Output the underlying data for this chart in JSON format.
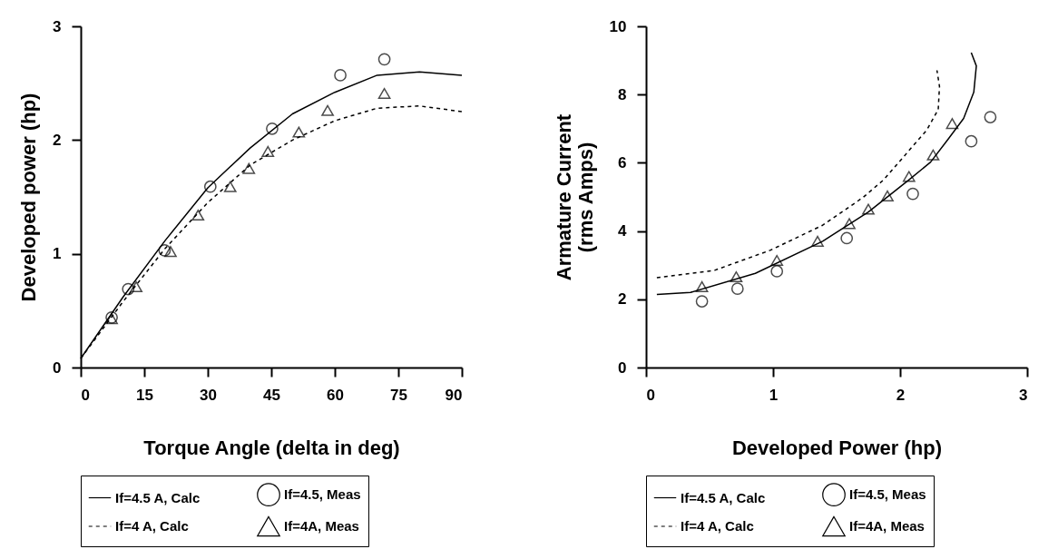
{
  "chart_data": [
    {
      "type": "line",
      "xlabel": "Torque Angle (delta in deg)",
      "ylabel": "Developed power (hp)",
      "xlim": [
        0,
        90
      ],
      "xticks": [
        0,
        15,
        30,
        45,
        60,
        75,
        90
      ],
      "ylim": [
        0,
        3
      ],
      "yticks": [
        0,
        1,
        2,
        3
      ],
      "grid": false,
      "legend": "bottom",
      "series": [
        {
          "name": "If=4.5 A, Calc",
          "type": "line",
          "line_style": "solid",
          "color": "#000000",
          "x": [
            0,
            10,
            20,
            30,
            40,
            50,
            60,
            70,
            80,
            90
          ],
          "values": [
            0.08,
            0.62,
            1.12,
            1.58,
            1.93,
            2.23,
            2.42,
            2.57,
            2.6,
            2.57
          ]
        },
        {
          "name": "If=4.5, Meas",
          "type": "scatter",
          "marker": "circle",
          "color": "#000000",
          "x": [
            7.3,
            11.2,
            19.8,
            30.6,
            45.2,
            61.3,
            71.7
          ],
          "values": [
            0.44,
            0.69,
            1.03,
            1.59,
            2.1,
            2.57,
            2.71
          ]
        },
        {
          "name": "If=4 A, Calc",
          "type": "line",
          "line_style": "dashed",
          "color": "#000000",
          "x": [
            0,
            10,
            20,
            30,
            40,
            50,
            60,
            70,
            80,
            90
          ],
          "values": [
            0.08,
            0.58,
            1.05,
            1.45,
            1.78,
            2.0,
            2.17,
            2.28,
            2.3,
            2.25
          ]
        },
        {
          "name": "If=4A, Meas",
          "type": "scatter",
          "marker": "triangle",
          "color": "#000000",
          "x": [
            7.3,
            13.1,
            21.2,
            27.7,
            35.3,
            39.7,
            44.2,
            51.5,
            58.3,
            71.7
          ],
          "values": [
            0.43,
            0.71,
            1.02,
            1.34,
            1.59,
            1.75,
            1.9,
            2.07,
            2.26,
            2.41
          ]
        }
      ]
    },
    {
      "type": "line",
      "xlabel": "Developed Power (hp)",
      "ylabel": "Armature Current\n(rms Amps)",
      "xlim": [
        0,
        3
      ],
      "xticks": [
        0,
        1,
        2,
        3
      ],
      "ylim": [
        0,
        10
      ],
      "yticks": [
        0,
        2,
        4,
        6,
        8,
        10
      ],
      "grid": false,
      "legend": "bottom",
      "series": [
        {
          "name": "If=4.5 A, Calc",
          "type": "line",
          "line_style": "solid",
          "color": "#000000",
          "x": [
            0.085,
            0.35,
            0.86,
            1.39,
            1.75,
            2.07,
            2.24,
            2.38,
            2.5,
            2.58,
            2.6,
            2.56
          ],
          "values": [
            2.14,
            2.2,
            2.76,
            3.7,
            4.56,
            5.5,
            6.02,
            6.7,
            7.3,
            8.07,
            8.84,
            9.23
          ]
        },
        {
          "name": "If=4.5, Meas",
          "type": "scatter",
          "marker": "circle",
          "color": "#000000",
          "x": [
            0.44,
            0.72,
            1.03,
            1.58,
            2.1,
            2.56,
            2.71
          ],
          "values": [
            1.94,
            2.31,
            2.82,
            3.79,
            5.09,
            6.63,
            7.34
          ]
        },
        {
          "name": "If=4 A, Calc",
          "type": "line",
          "line_style": "dashed",
          "color": "#000000",
          "x": [
            0.085,
            0.54,
            0.98,
            1.39,
            1.71,
            1.87,
            2.07,
            2.21,
            2.3,
            2.31,
            2.29
          ],
          "values": [
            2.63,
            2.85,
            3.44,
            4.17,
            4.99,
            5.5,
            6.36,
            6.96,
            7.56,
            8.24,
            8.71
          ]
        },
        {
          "name": "If=4A, Meas",
          "type": "scatter",
          "marker": "triangle",
          "color": "#000000",
          "x": [
            0.44,
            0.71,
            1.03,
            1.35,
            1.6,
            1.75,
            1.9,
            2.07,
            2.26,
            2.41
          ],
          "values": [
            2.37,
            2.66,
            3.14,
            3.7,
            4.22,
            4.64,
            5.03,
            5.6,
            6.23,
            7.15
          ]
        }
      ]
    }
  ]
}
